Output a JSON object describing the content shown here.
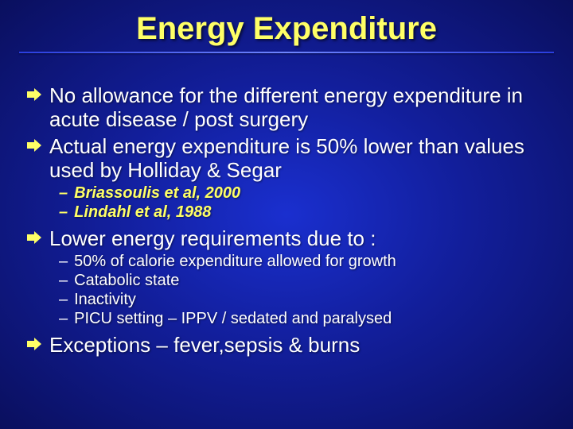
{
  "title": {
    "text": "Energy Expenditure",
    "color": "#ffff66",
    "fontsize": 40
  },
  "bullets": {
    "arrow_color": "#ffff66",
    "main_fontsize": 26,
    "sub_fontsize": 20,
    "ref_color": "#ffff66",
    "items": [
      {
        "text": "No allowance for the different energy expenditure in acute disease / post surgery",
        "subs": []
      },
      {
        "text": "Actual energy expenditure is 50% lower than values used by Holliday & Segar",
        "subs": [
          {
            "text": "Briassoulis et al, 2000",
            "ref": true
          },
          {
            "text": "Lindahl et al, 1988",
            "ref": true
          }
        ]
      },
      {
        "text": "Lower energy requirements due to :",
        "subs": [
          {
            "text": "50% of calorie expenditure allowed for growth",
            "ref": false
          },
          {
            "text": "Catabolic state",
            "ref": false
          },
          {
            "text": "Inactivity",
            "ref": false
          },
          {
            "text": "PICU setting – IPPV / sedated and paralysed",
            "ref": false
          }
        ]
      },
      {
        "text": "Exceptions – fever,sepsis & burns",
        "subs": []
      }
    ]
  }
}
